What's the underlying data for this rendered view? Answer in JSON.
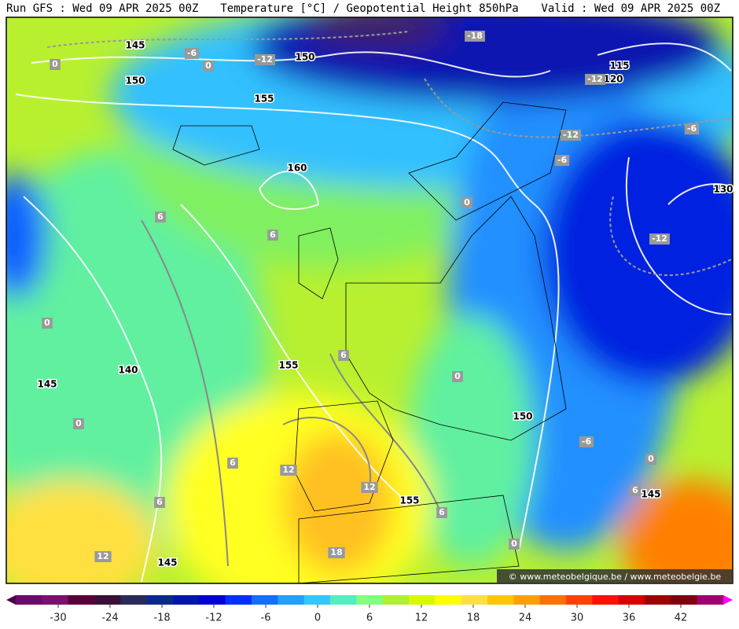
{
  "header": {
    "left": "Run GFS : Wed 09 APR 2025 00Z",
    "center": "Temperature [°C] / Geopotential Height 850hPa",
    "right": "Valid : Wed 09 APR 2025 00Z"
  },
  "contour_labels": [
    "145",
    "150",
    "150",
    "155",
    "160",
    "140",
    "145",
    "155",
    "150",
    "155",
    "145",
    "115",
    "120",
    "130",
    "145"
  ],
  "temperature_labels": [
    "0",
    "-6",
    "0",
    "-12",
    "-18",
    "-12",
    "-12",
    "-6",
    "-6",
    "0",
    "-12",
    "6",
    "6",
    "0",
    "6",
    "0",
    "0",
    "6",
    "12",
    "6",
    "12",
    "-6",
    "0",
    "6",
    "6",
    "0",
    "12",
    "18"
  ],
  "credit": "© www.meteobelgique.be / www.meteobelgie.be",
  "colorbar": {
    "lim": [
      -36,
      48
    ],
    "ticks": [
      -30,
      -24,
      -18,
      -12,
      -6,
      0,
      6,
      12,
      18,
      24,
      30,
      36,
      42
    ],
    "colors": [
      "#4a0050",
      "#6a0a6a",
      "#7a1070",
      "#5a0038",
      "#3a1038",
      "#2a2a5a",
      "#0a2a8a",
      "#0014b0",
      "#0000d8",
      "#0030ff",
      "#1070ff",
      "#20a0ff",
      "#30c8ff",
      "#50f0c0",
      "#80ff80",
      "#b0f030",
      "#d8f800",
      "#ffff00",
      "#ffe040",
      "#ffc800",
      "#ffa000",
      "#ff7000",
      "#ff4000",
      "#ff1000",
      "#d80000",
      "#a00000",
      "#800010",
      "#a00070",
      "#ff00ff"
    ]
  }
}
